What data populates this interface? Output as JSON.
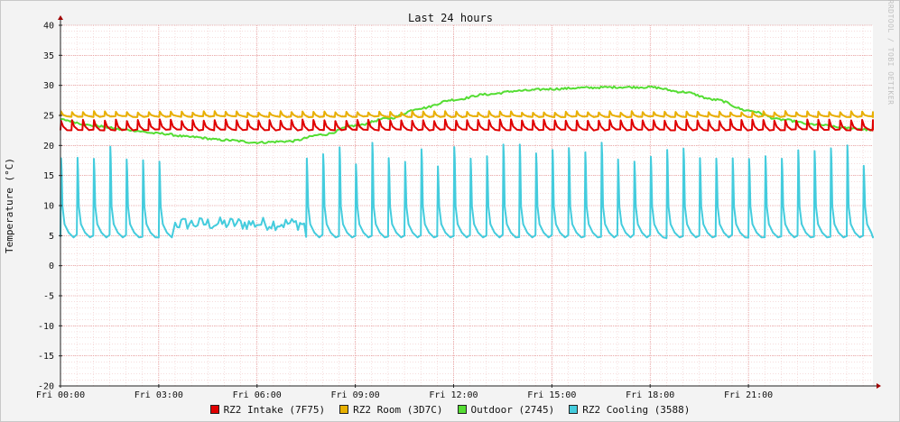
{
  "chart_data": {
    "type": "line",
    "title": "Last 24 hours",
    "ylabel": "Temperature (°C)",
    "watermark": "RRDTOOL / TOBI OETIKER",
    "ylim": [
      -20,
      40
    ],
    "yticks": [
      40,
      35,
      30,
      25,
      20,
      15,
      10,
      5,
      0,
      -5,
      -10,
      -15,
      -20
    ],
    "xlim": [
      0,
      24.8
    ],
    "xticks": [
      {
        "x": 0,
        "label": "Fri 00:00"
      },
      {
        "x": 3,
        "label": "Fri 03:00"
      },
      {
        "x": 6,
        "label": "Fri 06:00"
      },
      {
        "x": 9,
        "label": "Fri 09:00"
      },
      {
        "x": 12,
        "label": "Fri 12:00"
      },
      {
        "x": 15,
        "label": "Fri 15:00"
      },
      {
        "x": 18,
        "label": "Fri 18:00"
      },
      {
        "x": 21,
        "label": "Fri 21:00"
      }
    ],
    "grid": true,
    "legend_position": "bottom",
    "series": [
      {
        "name": "RZ2 Intake (7F75)",
        "color": "#e00000",
        "pattern": "sawtooth",
        "base": 22.6,
        "peak": 24.2,
        "period_hours": 0.335,
        "x": [
          0,
          24.8
        ],
        "values": [
          22.6,
          22.6
        ]
      },
      {
        "name": "RZ2 Room (3D7C)",
        "color": "#e8b000",
        "pattern": "sawtooth",
        "base": 24.8,
        "peak": 25.6,
        "period_hours": 0.335,
        "x": [
          0,
          24.8
        ],
        "values": [
          24.8,
          24.8
        ]
      },
      {
        "name": "Outdoor (2745)",
        "color": "#55dd33",
        "pattern": "smooth",
        "x": [
          0,
          1,
          2,
          3,
          4,
          5,
          6,
          7,
          8,
          9,
          10,
          11,
          12,
          13,
          14,
          15,
          16,
          17,
          18,
          19,
          20,
          21,
          22,
          23,
          24,
          24.8
        ],
        "values": [
          24.3,
          23.3,
          22.6,
          22.0,
          21.4,
          20.9,
          20.5,
          20.7,
          21.8,
          23.3,
          24.5,
          26.2,
          27.6,
          28.5,
          29.1,
          29.4,
          29.6,
          29.7,
          29.7,
          28.9,
          27.6,
          25.8,
          24.3,
          23.5,
          22.9,
          22.6
        ]
      },
      {
        "name": "RZ2 Cooling (3588)",
        "color": "#44ccdd",
        "pattern": "spikes",
        "base": 4.9,
        "peak": 20.5,
        "period_hours": 0.5,
        "noisy_range": [
          3.1,
          7.4
        ],
        "noisy_level": 7.0,
        "x": [
          0,
          24.8
        ],
        "values": [
          4.9,
          4.9
        ]
      }
    ]
  }
}
